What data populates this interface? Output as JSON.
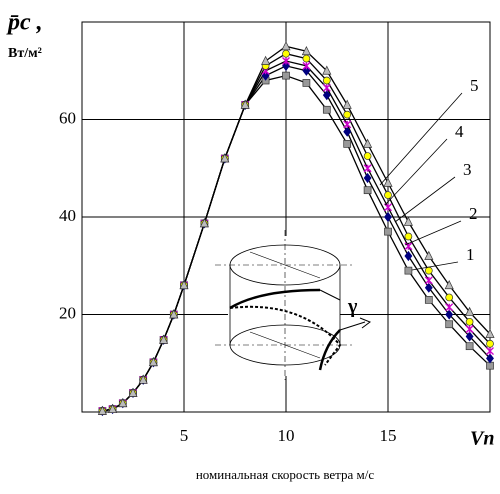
{
  "chart_data": {
    "type": "line",
    "y_label": "p̄c ,",
    "y_unit": "Вт/м²",
    "x_label": "Vп",
    "caption": "номинальная скорость ветра м/с",
    "inset_label": "γ",
    "x": [
      1,
      1.5,
      2,
      2.5,
      3,
      3.5,
      4,
      4.5,
      5,
      6,
      7,
      8,
      9,
      10,
      11,
      12,
      13,
      14,
      15,
      16,
      17,
      18,
      19,
      20
    ],
    "series": [
      {
        "name": "1",
        "color": "#999999",
        "marker": "square",
        "values": [
          0.2,
          0.6,
          1.8,
          3.9,
          6.6,
          10.2,
          14.8,
          20,
          26,
          38.7,
          52,
          63,
          68,
          69,
          67.5,
          62,
          55,
          45.5,
          37,
          29,
          23,
          18,
          13.5,
          9.5
        ]
      },
      {
        "name": "2",
        "color": "#000080",
        "marker": "diamond",
        "values": [
          0.2,
          0.6,
          1.8,
          3.9,
          6.6,
          10.2,
          14.8,
          20,
          26,
          38.7,
          52,
          63,
          69,
          71,
          70,
          65,
          57.5,
          48,
          40,
          32,
          25.5,
          20,
          15.5,
          11
        ]
      },
      {
        "name": "3",
        "color": "#cc00cc",
        "marker": "x",
        "values": [
          0.2,
          0.6,
          1.8,
          3.9,
          6.6,
          10.2,
          14.8,
          20,
          26,
          38.7,
          52,
          63,
          70,
          72,
          71,
          66.5,
          59,
          50,
          42,
          34,
          27,
          21.5,
          17,
          12.5
        ]
      },
      {
        "name": "4",
        "color": "#ffff00",
        "marker": "circle",
        "values": [
          0.2,
          0.6,
          1.8,
          3.9,
          6.6,
          10.2,
          14.8,
          20,
          26,
          38.7,
          52,
          63,
          71,
          73.5,
          72.5,
          68,
          61,
          52.5,
          44.5,
          36,
          29,
          23.5,
          18.5,
          14
        ]
      },
      {
        "name": "5",
        "color": "#bbbbbb",
        "marker": "triangle",
        "values": [
          0.2,
          0.6,
          1.8,
          3.9,
          6.6,
          10.2,
          14.8,
          20,
          26,
          38.7,
          52,
          63,
          72,
          75,
          74,
          70,
          63,
          55,
          47,
          39,
          32,
          26,
          20.5,
          16
        ]
      }
    ],
    "xlim": [
      0,
      20
    ],
    "xticks": [
      5,
      10,
      15
    ],
    "ylim": [
      0,
      80
    ],
    "yticks": [
      20,
      40,
      60
    ],
    "grid": true
  }
}
